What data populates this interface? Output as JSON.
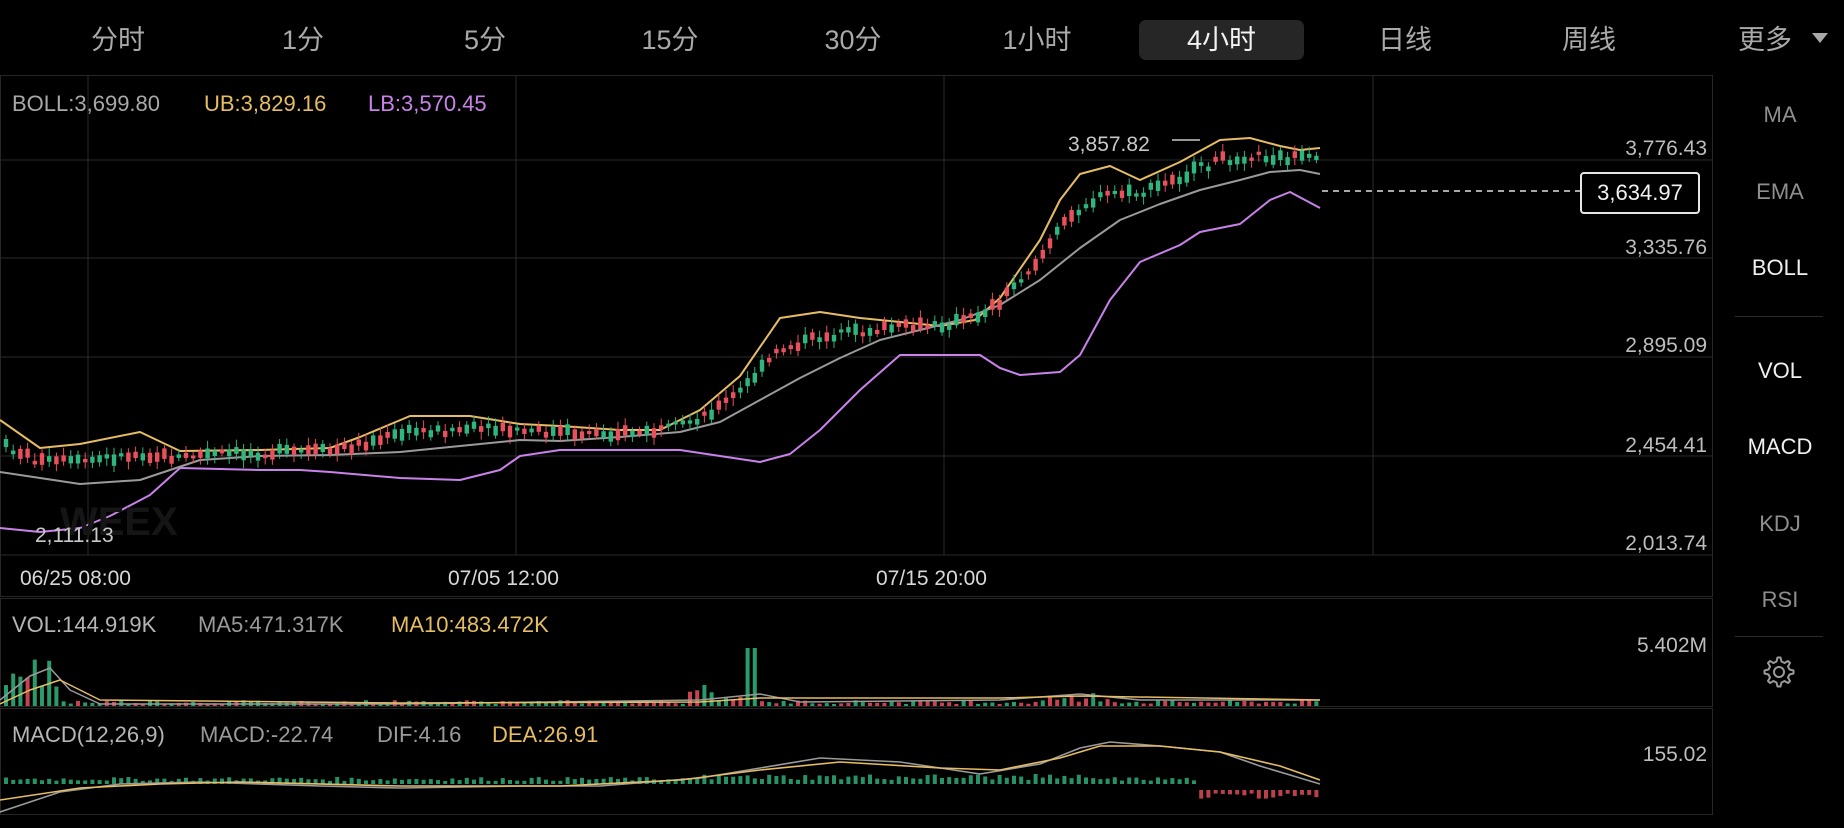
{
  "tabs": [
    {
      "label": "分时",
      "active": false
    },
    {
      "label": "1分",
      "active": false
    },
    {
      "label": "5分",
      "active": false
    },
    {
      "label": "15分",
      "active": false
    },
    {
      "label": "30分",
      "active": false
    },
    {
      "label": "1小时",
      "active": false
    },
    {
      "label": "4小时",
      "active": true
    },
    {
      "label": "日线",
      "active": false
    },
    {
      "label": "周线",
      "active": false
    }
  ],
  "more_label": "更多",
  "side_menu": {
    "ma": "MA",
    "ema": "EMA",
    "boll": "BOLL",
    "vol": "VOL",
    "macd": "MACD",
    "kdj": "KDJ",
    "rsi": "RSI",
    "settings_icon": "gear-icon"
  },
  "boll": {
    "label": "BOLL:3,699.80",
    "ub": "UB:3,829.16",
    "lb": "LB:3,570.45"
  },
  "price_axis": [
    "3,776.43",
    "3,335.76",
    "2,895.09",
    "2,454.41",
    "2,013.74"
  ],
  "high_marker": "3,857.82",
  "low_marker": "2,111.13",
  "current_price": "3,634.97",
  "time_axis": [
    "06/25 08:00",
    "07/05 12:00",
    "07/15 20:00"
  ],
  "volume": {
    "label": "VOL:144.919K",
    "ma5": "MA5:471.317K",
    "ma10": "MA10:483.472K",
    "scale": "5.402M"
  },
  "macd": {
    "label": "MACD(12,26,9)",
    "macd": "MACD:-22.74",
    "dif": "DIF:4.16",
    "dea": "DEA:26.91",
    "scale": "155.02"
  },
  "colors": {
    "up": "#2fb67e",
    "down": "#e8505b",
    "ub": "#e6bd62",
    "lb": "#c982ea",
    "mid": "#9a9a9a",
    "grid": "#2a2a2a"
  },
  "watermark": "WEEX"
}
